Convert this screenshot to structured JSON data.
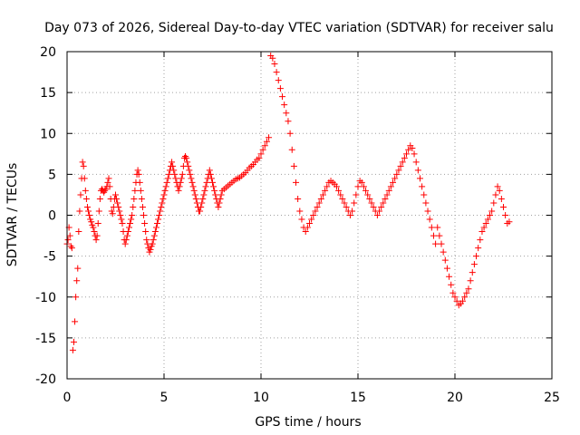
{
  "chart_data": {
    "type": "scatter",
    "title": "Day 073 of 2026, Sidereal Day-to-day VTEC variation (SDTVAR) for receiver salu",
    "xlabel": "GPS time / hours",
    "ylabel": "SDTVAR / TECUs",
    "xlim": [
      0,
      25
    ],
    "ylim": [
      -20,
      20
    ],
    "xticks": [
      0,
      5,
      10,
      15,
      20,
      25
    ],
    "yticks": [
      -20,
      -15,
      -10,
      -5,
      0,
      5,
      10,
      15,
      20
    ],
    "grid": true,
    "marker": "plus",
    "color": "#ff0000",
    "series": [
      {
        "name": "SDTVAR",
        "x": [
          0.0,
          0.05,
          0.1,
          0.15,
          0.2,
          0.25,
          0.3,
          0.35,
          0.4,
          0.45,
          0.5,
          0.55,
          0.6,
          0.65,
          0.7,
          0.75,
          0.8,
          0.85,
          0.9,
          0.95,
          1.0,
          1.05,
          1.1,
          1.15,
          1.2,
          1.25,
          1.3,
          1.35,
          1.4,
          1.45,
          1.5,
          1.55,
          1.6,
          1.65,
          1.7,
          1.75,
          1.8,
          1.85,
          1.9,
          1.95,
          2.0,
          2.05,
          2.1,
          2.15,
          2.2,
          2.25,
          2.3,
          2.35,
          2.4,
          2.45,
          2.5,
          2.55,
          2.6,
          2.65,
          2.7,
          2.75,
          2.8,
          2.85,
          2.9,
          2.95,
          3.0,
          3.05,
          3.1,
          3.15,
          3.2,
          3.25,
          3.3,
          3.35,
          3.4,
          3.45,
          3.5,
          3.55,
          3.6,
          3.65,
          3.7,
          3.75,
          3.8,
          3.85,
          3.9,
          3.95,
          4.0,
          4.05,
          4.1,
          4.15,
          4.2,
          4.25,
          4.3,
          4.35,
          4.4,
          4.45,
          4.5,
          4.55,
          4.6,
          4.65,
          4.7,
          4.75,
          4.8,
          4.85,
          4.9,
          4.95,
          5.0,
          5.05,
          5.1,
          5.15,
          5.2,
          5.25,
          5.3,
          5.35,
          5.4,
          5.45,
          5.5,
          5.55,
          5.6,
          5.65,
          5.7,
          5.75,
          5.8,
          5.85,
          5.9,
          5.95,
          6.0,
          6.05,
          6.1,
          6.15,
          6.2,
          6.25,
          6.3,
          6.35,
          6.4,
          6.45,
          6.5,
          6.55,
          6.6,
          6.65,
          6.7,
          6.75,
          6.8,
          6.85,
          6.9,
          6.95,
          7.0,
          7.05,
          7.1,
          7.15,
          7.2,
          7.25,
          7.3,
          7.35,
          7.4,
          7.45,
          7.5,
          7.55,
          7.6,
          7.65,
          7.7,
          7.75,
          7.8,
          7.85,
          7.9,
          7.95,
          8.0,
          8.1,
          8.2,
          8.3,
          8.4,
          8.5,
          8.6,
          8.7,
          8.8,
          8.9,
          9.0,
          9.1,
          9.2,
          9.3,
          9.4,
          9.5,
          9.6,
          9.7,
          9.8,
          9.9,
          10.0,
          10.1,
          10.2,
          10.3,
          10.4,
          10.5,
          10.6,
          10.7,
          10.8,
          10.9,
          11.0,
          11.1,
          11.2,
          11.3,
          11.4,
          11.5,
          11.6,
          11.7,
          11.8,
          11.9,
          12.0,
          12.1,
          12.2,
          12.3,
          12.4,
          12.5,
          12.6,
          12.7,
          12.8,
          12.9,
          13.0,
          13.1,
          13.2,
          13.3,
          13.4,
          13.5,
          13.6,
          13.7,
          13.8,
          13.9,
          14.0,
          14.1,
          14.2,
          14.3,
          14.4,
          14.5,
          14.6,
          14.7,
          14.8,
          14.9,
          15.0,
          15.1,
          15.2,
          15.3,
          15.4,
          15.5,
          15.6,
          15.7,
          15.8,
          15.9,
          16.0,
          16.1,
          16.2,
          16.3,
          16.4,
          16.5,
          16.6,
          16.7,
          16.8,
          16.9,
          17.0,
          17.1,
          17.2,
          17.3,
          17.4,
          17.5,
          17.6,
          17.7,
          17.8,
          17.9,
          18.0,
          18.1,
          18.2,
          18.3,
          18.4,
          18.5,
          18.6,
          18.7,
          18.8,
          18.9,
          19.0,
          19.1,
          19.2,
          19.3,
          19.4,
          19.5,
          19.6,
          19.7,
          19.8,
          19.9,
          20.0,
          20.1,
          20.2,
          20.3,
          20.4,
          20.5,
          20.6,
          20.7,
          20.8,
          20.9,
          21.0,
          21.1,
          21.2,
          21.3,
          21.4,
          21.5,
          21.6,
          21.7,
          21.8,
          21.9,
          22.0,
          22.1,
          22.2,
          22.3,
          22.4,
          22.5,
          22.6,
          22.7,
          22.8
        ],
        "y": [
          -3.5,
          -3.0,
          -1.5,
          -2.5,
          -3.8,
          -4.0,
          -16.5,
          -15.5,
          -13.0,
          -10.0,
          -8.0,
          -6.5,
          -2.0,
          0.5,
          2.5,
          4.5,
          6.5,
          6.0,
          4.5,
          3.0,
          2.0,
          1.0,
          0.5,
          0.0,
          -0.5,
          -0.8,
          -1.2,
          -1.5,
          -2.0,
          -2.5,
          -3.0,
          -2.5,
          -1.0,
          0.5,
          2.0,
          3.0,
          3.2,
          3.0,
          2.8,
          3.0,
          3.2,
          3.5,
          4.0,
          4.5,
          3.5,
          2.0,
          0.5,
          0.2,
          1.0,
          2.0,
          2.5,
          2.0,
          1.5,
          1.0,
          0.5,
          0.0,
          -0.5,
          -1.0,
          -2.0,
          -3.0,
          -3.5,
          -3.0,
          -2.5,
          -2.0,
          -1.5,
          -1.0,
          -0.5,
          0.0,
          1.0,
          2.0,
          3.0,
          4.0,
          5.0,
          5.5,
          5.0,
          4.0,
          3.0,
          2.0,
          1.0,
          0.0,
          -1.0,
          -2.0,
          -3.0,
          -3.5,
          -4.0,
          -4.5,
          -4.2,
          -3.8,
          -3.5,
          -3.0,
          -2.5,
          -2.0,
          -1.5,
          -1.0,
          -0.5,
          0.0,
          0.5,
          1.0,
          1.5,
          2.0,
          2.5,
          3.0,
          3.5,
          4.0,
          4.5,
          5.0,
          5.5,
          6.0,
          6.5,
          6.0,
          5.5,
          5.0,
          4.5,
          4.0,
          3.5,
          3.0,
          3.5,
          4.0,
          4.5,
          5.0,
          6.0,
          7.0,
          7.2,
          7.0,
          6.5,
          6.0,
          5.5,
          5.0,
          4.5,
          4.0,
          3.5,
          3.0,
          2.5,
          2.0,
          1.5,
          1.0,
          0.5,
          0.5,
          1.0,
          1.5,
          2.0,
          2.5,
          3.0,
          3.5,
          4.0,
          4.5,
          5.0,
          5.5,
          5.0,
          4.5,
          4.0,
          3.5,
          3.0,
          2.5,
          2.0,
          1.5,
          1.0,
          1.5,
          2.0,
          2.5,
          3.0,
          3.2,
          3.4,
          3.6,
          3.8,
          4.0,
          4.2,
          4.4,
          4.5,
          4.6,
          4.8,
          5.0,
          5.2,
          5.5,
          5.8,
          6.0,
          6.2,
          6.5,
          6.8,
          7.0,
          7.5,
          8.0,
          8.5,
          9.0,
          9.5,
          19.5,
          19.2,
          18.5,
          17.5,
          16.5,
          15.5,
          14.5,
          13.5,
          12.5,
          11.5,
          10.0,
          8.0,
          6.0,
          4.0,
          2.0,
          0.5,
          -0.5,
          -1.5,
          -2.0,
          -1.5,
          -1.0,
          -0.5,
          0.0,
          0.5,
          1.0,
          1.5,
          2.0,
          2.5,
          3.0,
          3.5,
          4.0,
          4.2,
          4.0,
          3.8,
          3.5,
          3.0,
          2.5,
          2.0,
          1.5,
          1.0,
          0.5,
          0.0,
          0.5,
          1.5,
          2.5,
          3.5,
          4.2,
          4.0,
          3.5,
          3.0,
          2.5,
          2.0,
          1.5,
          1.0,
          0.5,
          0.0,
          0.5,
          1.0,
          1.5,
          2.0,
          2.5,
          3.0,
          3.5,
          4.0,
          4.5,
          5.0,
          5.5,
          6.0,
          6.5,
          7.0,
          7.5,
          8.0,
          8.5,
          8.2,
          7.5,
          6.5,
          5.5,
          4.5,
          3.5,
          2.5,
          1.5,
          0.5,
          -0.5,
          -1.5,
          -2.5,
          -3.5,
          -1.5,
          -2.5,
          -3.5,
          -4.5,
          -5.5,
          -6.5,
          -7.5,
          -8.5,
          -9.5,
          -10.0,
          -10.5,
          -11.0,
          -10.8,
          -10.5,
          -10.0,
          -9.5,
          -9.0,
          -8.0,
          -7.0,
          -6.0,
          -5.0,
          -4.0,
          -3.0,
          -2.0,
          -1.5,
          -1.0,
          -0.5,
          0.0,
          0.5,
          1.5,
          2.5,
          3.5,
          3.0,
          2.0,
          1.0,
          0.0,
          -1.0,
          -0.8
        ]
      }
    ]
  }
}
